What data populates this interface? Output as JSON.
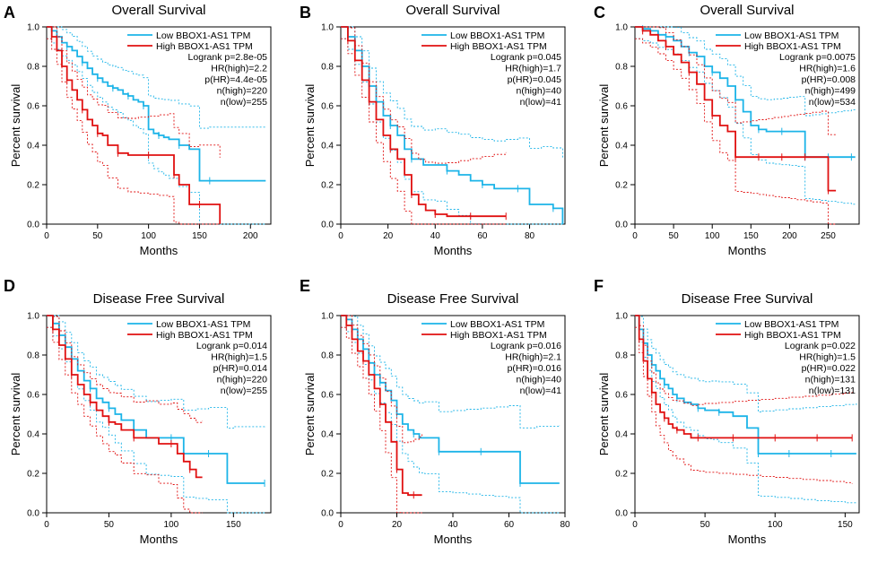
{
  "colors": {
    "low": "#1cb4e8",
    "high": "#e01010",
    "axis": "#000000"
  },
  "legend": {
    "low": "Low BBOX1-AS1 TPM",
    "high": "High BBOX1-AS1 TPM"
  },
  "chart_data": [
    {
      "panel": "A",
      "type": "line",
      "title": "Overall Survival",
      "xlabel": "Months",
      "ylabel": "Percent survival",
      "xlim": [
        0,
        220
      ],
      "ylim": [
        0,
        1
      ],
      "xticks": [
        0,
        50,
        100,
        150,
        200
      ],
      "yticks": [
        0.0,
        0.2,
        0.4,
        0.6,
        0.8,
        1.0
      ],
      "stats": [
        "Logrank p=2.8e-05",
        "HR(high)=2.2",
        "p(HR)=4.4e-05",
        "n(high)=220",
        "n(low)=255"
      ],
      "series": [
        {
          "name": "Low BBOX1-AS1 TPM",
          "x": [
            0,
            5,
            10,
            15,
            20,
            25,
            30,
            35,
            40,
            45,
            50,
            55,
            60,
            65,
            70,
            75,
            80,
            85,
            90,
            95,
            100,
            105,
            110,
            115,
            120,
            130,
            140,
            150,
            160,
            215
          ],
          "y": [
            1,
            0.98,
            0.95,
            0.92,
            0.9,
            0.88,
            0.85,
            0.82,
            0.79,
            0.76,
            0.74,
            0.72,
            0.7,
            0.69,
            0.68,
            0.66,
            0.65,
            0.63,
            0.62,
            0.6,
            0.48,
            0.46,
            0.45,
            0.44,
            0.43,
            0.4,
            0.38,
            0.22,
            0.22,
            0.22
          ]
        },
        {
          "name": "High BBOX1-AS1 TPM",
          "x": [
            0,
            5,
            10,
            15,
            20,
            25,
            30,
            35,
            40,
            45,
            50,
            55,
            60,
            70,
            80,
            90,
            100,
            110,
            120,
            125,
            130,
            140,
            150,
            170
          ],
          "y": [
            1,
            0.95,
            0.88,
            0.8,
            0.73,
            0.68,
            0.63,
            0.58,
            0.53,
            0.5,
            0.46,
            0.45,
            0.4,
            0.36,
            0.35,
            0.35,
            0.35,
            0.35,
            0.35,
            0.25,
            0.2,
            0.1,
            0.1,
            0.0
          ]
        }
      ]
    },
    {
      "panel": "B",
      "type": "line",
      "title": "Overall Survival",
      "xlabel": "Months",
      "ylabel": "Percent survival",
      "xlim": [
        0,
        95
      ],
      "ylim": [
        0,
        1
      ],
      "xticks": [
        0,
        20,
        40,
        60,
        80
      ],
      "yticks": [
        0.0,
        0.2,
        0.4,
        0.6,
        0.8,
        1.0
      ],
      "stats": [
        "Logrank p=0.045",
        "HR(high)=1.7",
        "p(HR)=0.045",
        "n(high)=40",
        "n(low)=41"
      ],
      "series": [
        {
          "name": "Low BBOX1-AS1 TPM",
          "x": [
            0,
            3,
            6,
            9,
            12,
            15,
            18,
            21,
            24,
            27,
            30,
            35,
            40,
            45,
            50,
            55,
            60,
            65,
            70,
            75,
            80,
            85,
            90,
            94
          ],
          "y": [
            1,
            0.95,
            0.88,
            0.8,
            0.7,
            0.62,
            0.55,
            0.5,
            0.45,
            0.38,
            0.33,
            0.3,
            0.3,
            0.27,
            0.25,
            0.22,
            0.2,
            0.18,
            0.18,
            0.18,
            0.1,
            0.1,
            0.08,
            0.0
          ]
        },
        {
          "name": "High BBOX1-AS1 TPM",
          "x": [
            0,
            3,
            6,
            9,
            12,
            15,
            18,
            21,
            24,
            27,
            30,
            33,
            36,
            40,
            45,
            50,
            55,
            60,
            65,
            70
          ],
          "y": [
            1,
            0.93,
            0.83,
            0.73,
            0.62,
            0.53,
            0.45,
            0.38,
            0.33,
            0.25,
            0.15,
            0.1,
            0.07,
            0.05,
            0.04,
            0.04,
            0.04,
            0.04,
            0.04,
            0.04
          ]
        }
      ]
    },
    {
      "panel": "C",
      "type": "line",
      "title": "Overall Survival",
      "xlabel": "Months",
      "ylabel": "Percent survival",
      "xlim": [
        0,
        290
      ],
      "ylim": [
        0,
        1
      ],
      "xticks": [
        0,
        50,
        100,
        150,
        200,
        250
      ],
      "yticks": [
        0.0,
        0.2,
        0.4,
        0.6,
        0.8,
        1.0
      ],
      "stats": [
        "Logrank p=0.0075",
        "HR(high)=1.6",
        "p(HR)=0.008",
        "n(high)=499",
        "n(low)=534"
      ],
      "series": [
        {
          "name": "Low BBOX1-AS1 TPM",
          "x": [
            0,
            10,
            20,
            30,
            40,
            50,
            60,
            70,
            80,
            90,
            100,
            110,
            120,
            130,
            140,
            150,
            160,
            170,
            180,
            190,
            200,
            210,
            220,
            230,
            240,
            250,
            260,
            270,
            280,
            285
          ],
          "y": [
            1,
            0.99,
            0.98,
            0.96,
            0.95,
            0.93,
            0.9,
            0.87,
            0.85,
            0.8,
            0.77,
            0.74,
            0.7,
            0.63,
            0.57,
            0.5,
            0.48,
            0.47,
            0.47,
            0.47,
            0.47,
            0.47,
            0.34,
            0.34,
            0.34,
            0.34,
            0.34,
            0.34,
            0.34,
            0.34
          ]
        },
        {
          "name": "High BBOX1-AS1 TPM",
          "x": [
            0,
            10,
            20,
            30,
            40,
            50,
            60,
            70,
            80,
            90,
            100,
            110,
            120,
            130,
            140,
            150,
            160,
            170,
            180,
            190,
            200,
            210,
            220,
            230,
            240,
            250,
            260
          ],
          "y": [
            1,
            0.98,
            0.96,
            0.93,
            0.9,
            0.86,
            0.82,
            0.77,
            0.71,
            0.63,
            0.55,
            0.5,
            0.47,
            0.34,
            0.34,
            0.34,
            0.34,
            0.34,
            0.34,
            0.34,
            0.34,
            0.34,
            0.34,
            0.34,
            0.34,
            0.17,
            0.17
          ]
        }
      ]
    },
    {
      "panel": "D",
      "type": "line",
      "title": "Disease Free Survival",
      "xlabel": "Months",
      "ylabel": "Percent survival",
      "xlim": [
        0,
        180
      ],
      "ylim": [
        0,
        1
      ],
      "xticks": [
        0,
        50,
        100,
        150
      ],
      "yticks": [
        0.0,
        0.2,
        0.4,
        0.6,
        0.8,
        1.0
      ],
      "stats": [
        "Logrank p=0.014",
        "HR(high)=1.5",
        "p(HR)=0.014",
        "n(high)=220",
        "n(low)=255"
      ],
      "series": [
        {
          "name": "Low BBOX1-AS1 TPM",
          "x": [
            0,
            5,
            10,
            15,
            20,
            25,
            30,
            35,
            40,
            45,
            50,
            55,
            60,
            70,
            80,
            90,
            100,
            110,
            120,
            130,
            145,
            150,
            175
          ],
          "y": [
            1,
            0.96,
            0.9,
            0.84,
            0.78,
            0.72,
            0.67,
            0.63,
            0.58,
            0.56,
            0.53,
            0.5,
            0.47,
            0.42,
            0.38,
            0.38,
            0.38,
            0.3,
            0.3,
            0.3,
            0.15,
            0.15,
            0.15
          ]
        },
        {
          "name": "High BBOX1-AS1 TPM",
          "x": [
            0,
            5,
            10,
            15,
            20,
            25,
            30,
            35,
            40,
            45,
            50,
            55,
            60,
            70,
            80,
            90,
            100,
            105,
            110,
            115,
            120,
            125
          ],
          "y": [
            1,
            0.93,
            0.85,
            0.78,
            0.7,
            0.65,
            0.6,
            0.56,
            0.52,
            0.49,
            0.46,
            0.45,
            0.42,
            0.38,
            0.38,
            0.35,
            0.35,
            0.3,
            0.26,
            0.22,
            0.18,
            0.18
          ]
        }
      ]
    },
    {
      "panel": "E",
      "type": "line",
      "title": "Disease Free Survival",
      "xlabel": "Months",
      "ylabel": "Percent survival",
      "xlim": [
        0,
        80
      ],
      "ylim": [
        0,
        1
      ],
      "xticks": [
        0,
        20,
        40,
        60,
        80
      ],
      "yticks": [
        0.0,
        0.2,
        0.4,
        0.6,
        0.8,
        1.0
      ],
      "stats": [
        "Logrank p=0.016",
        "HR(high)=2.1",
        "p(HR)=0.016",
        "n(high)=40",
        "n(low)=41"
      ],
      "series": [
        {
          "name": "Low BBOX1-AS1 TPM",
          "x": [
            0,
            2,
            4,
            6,
            8,
            10,
            12,
            14,
            16,
            18,
            20,
            22,
            24,
            26,
            28,
            30,
            35,
            40,
            45,
            50,
            55,
            60,
            64,
            70,
            78
          ],
          "y": [
            1,
            0.98,
            0.93,
            0.88,
            0.83,
            0.76,
            0.7,
            0.66,
            0.62,
            0.57,
            0.5,
            0.45,
            0.42,
            0.4,
            0.38,
            0.38,
            0.31,
            0.31,
            0.31,
            0.31,
            0.31,
            0.31,
            0.15,
            0.15,
            0.15
          ]
        },
        {
          "name": "High BBOX1-AS1 TPM",
          "x": [
            0,
            2,
            4,
            6,
            8,
            10,
            12,
            14,
            16,
            18,
            20,
            22,
            24,
            26,
            28,
            29
          ],
          "y": [
            1,
            0.95,
            0.88,
            0.82,
            0.77,
            0.7,
            0.63,
            0.55,
            0.46,
            0.36,
            0.22,
            0.1,
            0.09,
            0.09,
            0.09,
            0.09
          ]
        }
      ]
    },
    {
      "panel": "F",
      "type": "line",
      "title": "Disease Free Survival",
      "xlabel": "Months",
      "ylabel": "Percent survival",
      "xlim": [
        0,
        160
      ],
      "ylim": [
        0,
        1
      ],
      "xticks": [
        0,
        50,
        100,
        150
      ],
      "yticks": [
        0.0,
        0.2,
        0.4,
        0.6,
        0.8,
        1.0
      ],
      "stats": [
        "Logrank p=0.022",
        "HR(high)=1.5",
        "p(HR)=0.022",
        "n(high)=131",
        "n(low)=131"
      ],
      "series": [
        {
          "name": "Low BBOX1-AS1 TPM",
          "x": [
            0,
            3,
            6,
            9,
            12,
            15,
            18,
            21,
            24,
            27,
            30,
            35,
            40,
            45,
            50,
            55,
            60,
            70,
            80,
            88,
            90,
            100,
            110,
            120,
            130,
            140,
            150,
            158
          ],
          "y": [
            1,
            0.93,
            0.86,
            0.8,
            0.75,
            0.72,
            0.68,
            0.65,
            0.63,
            0.6,
            0.58,
            0.56,
            0.55,
            0.53,
            0.52,
            0.52,
            0.51,
            0.49,
            0.43,
            0.3,
            0.3,
            0.3,
            0.3,
            0.3,
            0.3,
            0.3,
            0.3,
            0.3
          ]
        },
        {
          "name": "High BBOX1-AS1 TPM",
          "x": [
            0,
            3,
            6,
            9,
            12,
            15,
            18,
            21,
            24,
            27,
            30,
            35,
            40,
            45,
            50,
            60,
            70,
            80,
            90,
            100,
            110,
            120,
            130,
            140,
            150,
            155
          ],
          "y": [
            1,
            0.88,
            0.77,
            0.68,
            0.61,
            0.55,
            0.51,
            0.48,
            0.45,
            0.43,
            0.42,
            0.4,
            0.38,
            0.38,
            0.38,
            0.38,
            0.38,
            0.38,
            0.38,
            0.38,
            0.38,
            0.38,
            0.38,
            0.38,
            0.38,
            0.38
          ]
        }
      ]
    }
  ]
}
